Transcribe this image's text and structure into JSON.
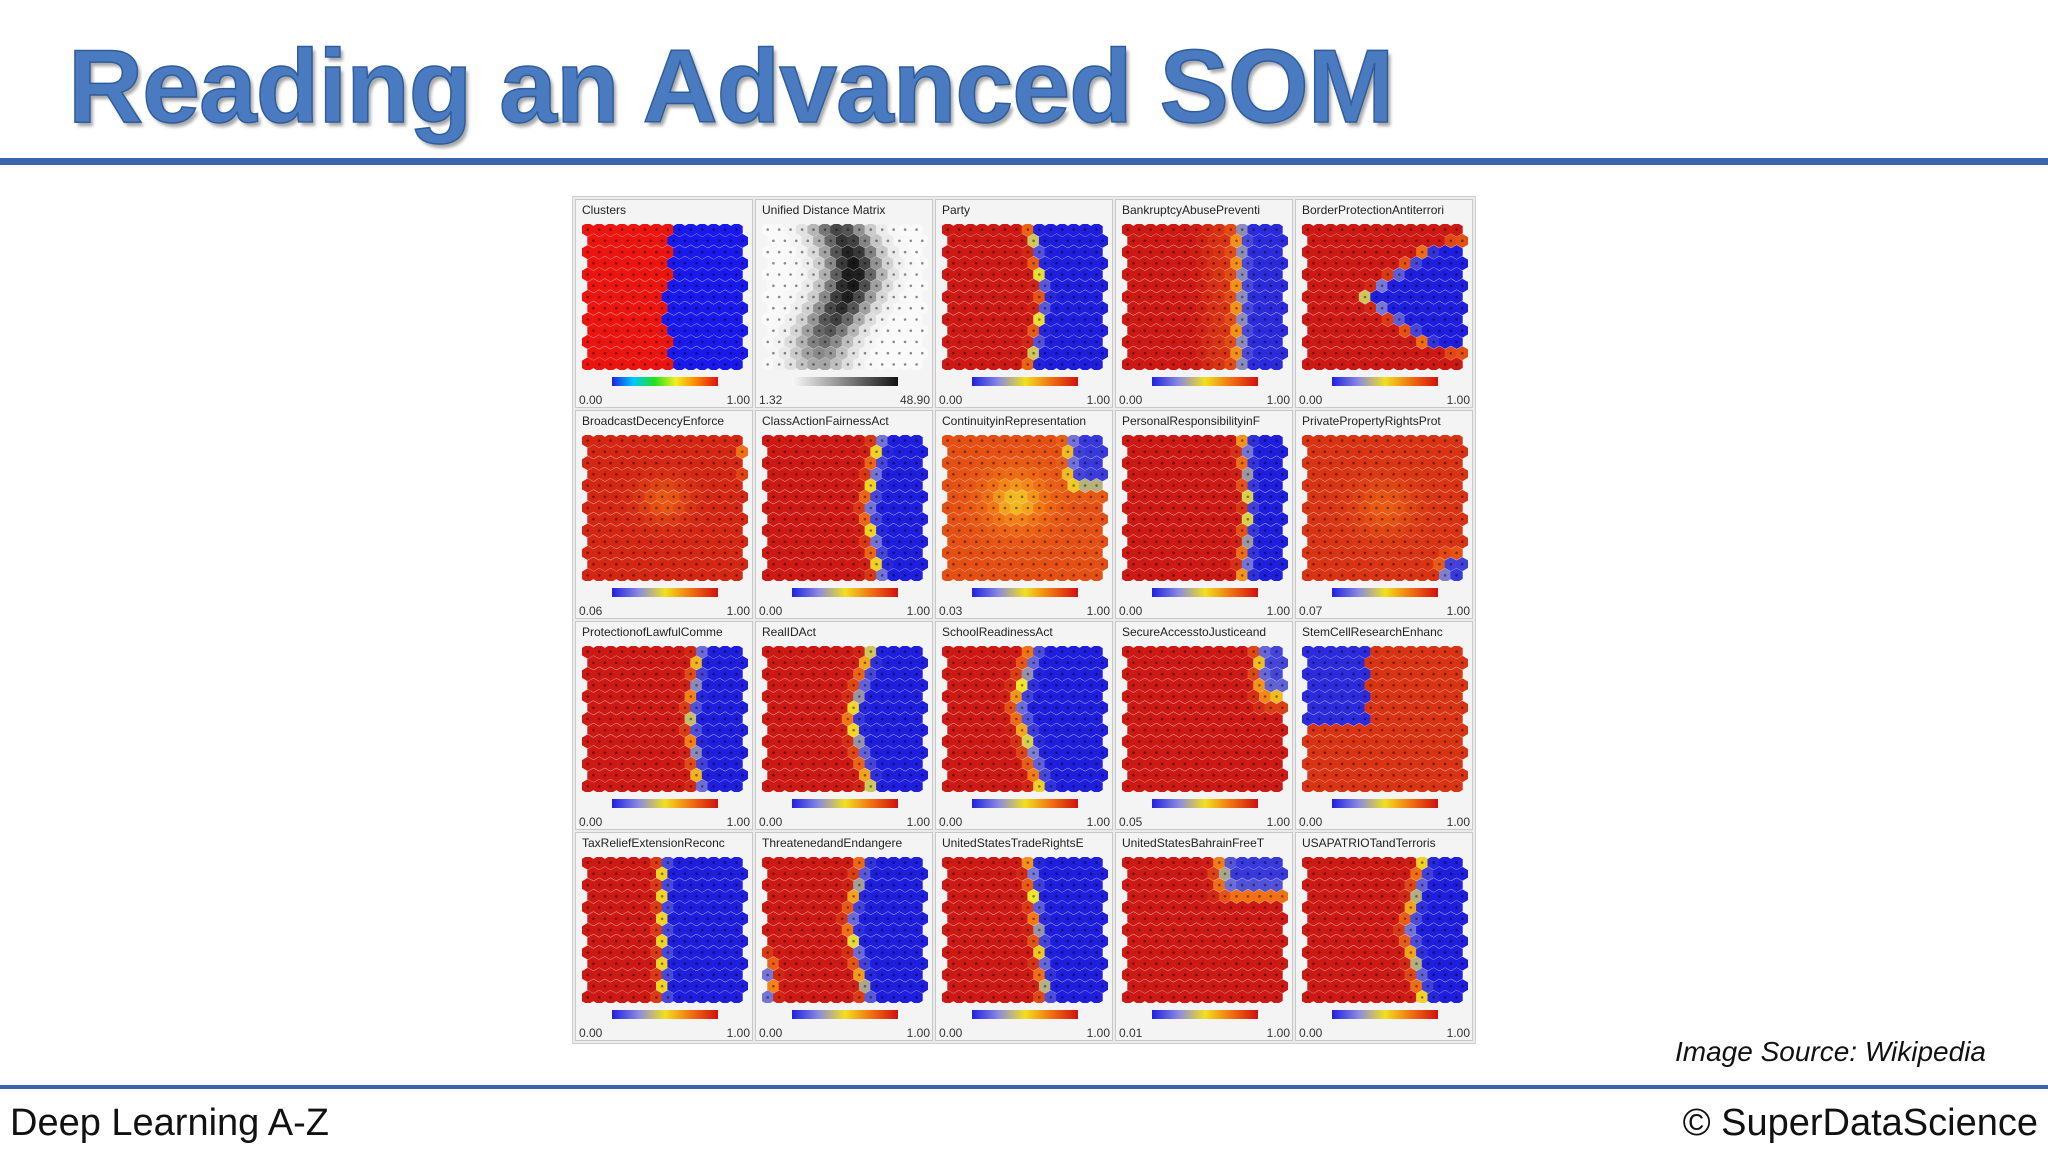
{
  "slide": {
    "title": "Reading an Advanced SOM",
    "source": "Image Source: Wikipedia",
    "footer_left": "Deep Learning A-Z",
    "footer_right": "© SuperDataScience",
    "accent_color": "#3b64ad",
    "title_color": "#4a7bc0"
  },
  "som_panels": [
    {
      "title": "Clusters",
      "min": "0.00",
      "max": "1.00",
      "colormap": "rainbow",
      "pattern": "clusters"
    },
    {
      "title": "Unified Distance Matrix",
      "min": "1.32",
      "max": "48.90",
      "colormap": "gray",
      "pattern": "umatrix"
    },
    {
      "title": "Party",
      "min": "0.00",
      "max": "1.00",
      "colormap": "heat",
      "pattern": "party"
    },
    {
      "title": "BankruptcyAbusePreventi",
      "min": "0.00",
      "max": "1.00",
      "colormap": "heat",
      "pattern": "bankruptcy"
    },
    {
      "title": "BorderProtectionAntiterrori",
      "min": "0.00",
      "max": "1.00",
      "colormap": "heat",
      "pattern": "border"
    },
    {
      "title": "BroadcastDecencyEnforce",
      "min": "0.06",
      "max": "1.00",
      "colormap": "heat",
      "pattern": "broadcast"
    },
    {
      "title": "ClassActionFairnessAct",
      "min": "0.00",
      "max": "1.00",
      "colormap": "heat",
      "pattern": "classaction"
    },
    {
      "title": "ContinuityinRepresentation",
      "min": "0.03",
      "max": "1.00",
      "colormap": "heat",
      "pattern": "continuity"
    },
    {
      "title": "PersonalResponsibilityinF",
      "min": "0.00",
      "max": "1.00",
      "colormap": "heat",
      "pattern": "personal"
    },
    {
      "title": "PrivatePropertyRightsProt",
      "min": "0.07",
      "max": "1.00",
      "colormap": "heat",
      "pattern": "private"
    },
    {
      "title": "ProtectionofLawfulComme",
      "min": "0.00",
      "max": "1.00",
      "colormap": "heat",
      "pattern": "protection"
    },
    {
      "title": "RealIDAct",
      "min": "0.00",
      "max": "1.00",
      "colormap": "heat",
      "pattern": "realid"
    },
    {
      "title": "SchoolReadinessAct",
      "min": "0.00",
      "max": "1.00",
      "colormap": "heat",
      "pattern": "school"
    },
    {
      "title": "SecureAccesstoJusticeand",
      "min": "0.05",
      "max": "1.00",
      "colormap": "heat",
      "pattern": "secure"
    },
    {
      "title": "StemCellResearchEnhanc",
      "min": "0.00",
      "max": "1.00",
      "colormap": "heat",
      "pattern": "stemcell"
    },
    {
      "title": "TaxReliefExtensionReconc",
      "min": "0.00",
      "max": "1.00",
      "colormap": "heat",
      "pattern": "taxrelief"
    },
    {
      "title": "ThreatenedandEndangere",
      "min": "0.00",
      "max": "1.00",
      "colormap": "heat",
      "pattern": "threatened"
    },
    {
      "title": "UnitedStatesTradeRightsE",
      "min": "0.00",
      "max": "1.00",
      "colormap": "heat",
      "pattern": "traderights"
    },
    {
      "title": "UnitedStatesBahrainFreeT",
      "min": "0.01",
      "max": "1.00",
      "colormap": "heat",
      "pattern": "bahrain"
    },
    {
      "title": "USAPATRIOTandTerroris",
      "min": "0.00",
      "max": "1.00",
      "colormap": "heat",
      "pattern": "patriot"
    }
  ]
}
